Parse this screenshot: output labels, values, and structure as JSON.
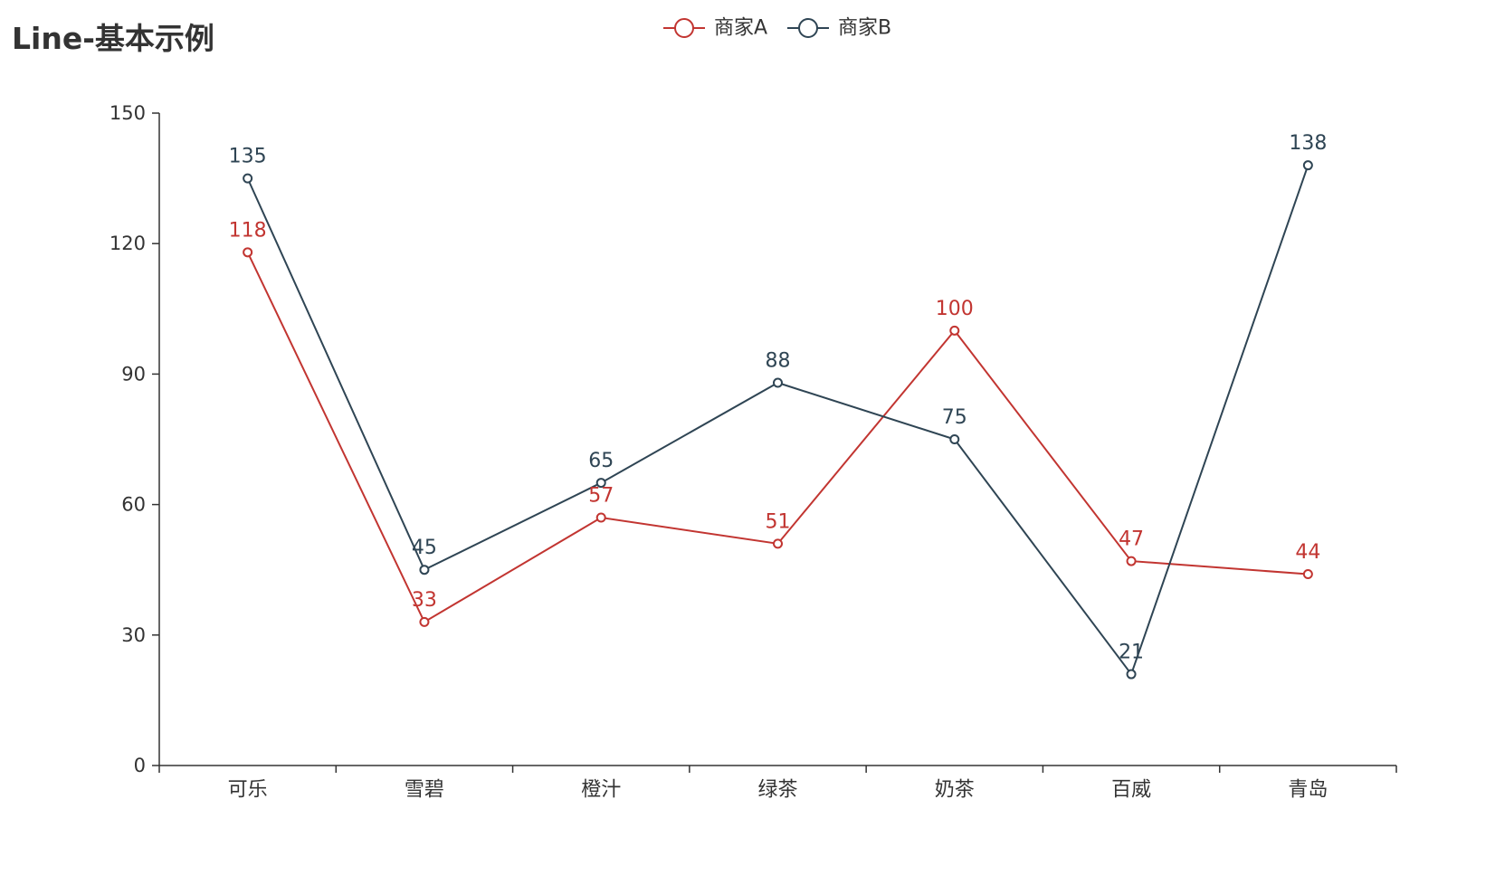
{
  "chart_data": {
    "type": "line",
    "title": "Line-基本示例",
    "categories": [
      "可乐",
      "雪碧",
      "橙汁",
      "绿茶",
      "奶茶",
      "百威",
      "青岛"
    ],
    "series": [
      {
        "name": "商家A",
        "color": "#c23531",
        "values": [
          118,
          33,
          57,
          51,
          100,
          47,
          44
        ]
      },
      {
        "name": "商家B",
        "color": "#2f4554",
        "values": [
          135,
          45,
          65,
          88,
          75,
          21,
          138
        ]
      }
    ],
    "ylim": [
      0,
      150
    ],
    "yticks": [
      0,
      30,
      60,
      90,
      120,
      150
    ],
    "xlabel": "",
    "ylabel": "",
    "grid": false,
    "legend_position": "top-center",
    "markers": "hollow-circle",
    "data_labels": true
  }
}
